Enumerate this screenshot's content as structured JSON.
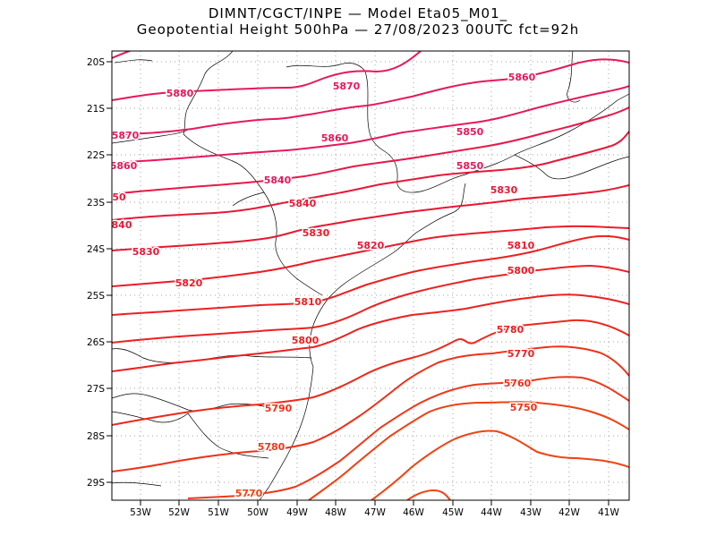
{
  "title_line1": "DIMNT/CGCT/INPE  —   Model Eta05_M01_",
  "title_line2": "Geopotential Height 500hPa  —   27/08/2023 00UTC fct=92h",
  "lat_labels": [
    "20S",
    "21S",
    "22S",
    "23S",
    "24S",
    "25S",
    "26S",
    "27S",
    "28S",
    "29S"
  ],
  "lon_labels": [
    "53W",
    "52W",
    "51W",
    "50W",
    "49W",
    "48W",
    "47W",
    "46W",
    "45W",
    "44W",
    "43W",
    "42W",
    "41W"
  ],
  "colors": {
    "frame": "#000000",
    "grid": "#a0a0a0",
    "coast": "#000000",
    "contour_high": "#e8185a",
    "contour_mid": "#ee2020",
    "contour_low": "#f04010"
  },
  "contour_labels": [
    {
      "text": "5880",
      "color": "#e8185a"
    },
    {
      "text": "5870",
      "color": "#e8185a"
    },
    {
      "text": "5860",
      "color": "#e8185a"
    },
    {
      "text": "5870",
      "color": "#e8185a"
    },
    {
      "text": "5860",
      "color": "#e8185a"
    },
    {
      "text": "5850",
      "color": "#e8185a"
    },
    {
      "text": "5860",
      "color": "#e8185a"
    },
    {
      "text": "5840",
      "color": "#e8185a"
    },
    {
      "text": "5850",
      "color": "#e8185a"
    },
    {
      "text": "5830",
      "color": "#e81838"
    },
    {
      "text": "50",
      "color": "#e81838"
    },
    {
      "text": "5840",
      "color": "#e81838"
    },
    {
      "text": "840",
      "color": "#e81838"
    },
    {
      "text": "5830",
      "color": "#e81838"
    },
    {
      "text": "5820",
      "color": "#e81838"
    },
    {
      "text": "5810",
      "color": "#ee1a28"
    },
    {
      "text": "5830",
      "color": "#ee1a28"
    },
    {
      "text": "5800",
      "color": "#ee1a28"
    },
    {
      "text": "5820",
      "color": "#ee1a28"
    },
    {
      "text": "5810",
      "color": "#ee2020"
    },
    {
      "text": "5780",
      "color": "#ee2020"
    },
    {
      "text": "5800",
      "color": "#ee2020"
    },
    {
      "text": "5770",
      "color": "#ee2020"
    },
    {
      "text": "5760",
      "color": "#f03018"
    },
    {
      "text": "5790",
      "color": "#f03018"
    },
    {
      "text": "5750",
      "color": "#f03018"
    },
    {
      "text": "5780",
      "color": "#f03818"
    },
    {
      "text": "5770",
      "color": "#f04010"
    }
  ]
}
